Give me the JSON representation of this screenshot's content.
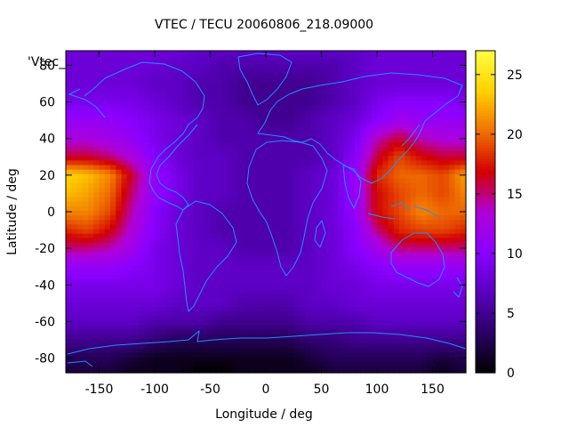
{
  "chart_data": {
    "type": "heatmap",
    "title": "VTEC / TECU 20060806_218.09000",
    "key_label": "'Vtec_",
    "xlabel": "Longitude / deg",
    "ylabel": "Latitude / deg",
    "xlim": [
      -180,
      180
    ],
    "ylim": [
      -88,
      88
    ],
    "xticks": [
      -150,
      -100,
      -50,
      0,
      50,
      100,
      150
    ],
    "yticks": [
      -80,
      -60,
      -40,
      -20,
      0,
      20,
      40,
      60,
      80
    ],
    "colorbar": {
      "range": [
        0,
        27
      ],
      "ticks": [
        0,
        5,
        10,
        15,
        20,
        25
      ],
      "palette": [
        "#000000",
        "#2a0064",
        "#5a00c0",
        "#8a00ff",
        "#b000d8",
        "#d20000",
        "#f07000",
        "#ffd000",
        "#ffff40"
      ]
    },
    "coastline_color": "#1e90ff",
    "grid": false,
    "x": [
      -180,
      -160,
      -140,
      -120,
      -100,
      -80,
      -60,
      -40,
      -20,
      0,
      20,
      40,
      60,
      80,
      100,
      120,
      140,
      160,
      180
    ],
    "y": [
      87.5,
      80,
      70,
      60,
      50,
      40,
      30,
      20,
      10,
      0,
      -10,
      -20,
      -30,
      -40,
      -50,
      -60,
      -70,
      -80,
      -87.5
    ],
    "z": [
      [
        8,
        8,
        8,
        8,
        8,
        8,
        7,
        7,
        7,
        7,
        7,
        7,
        7,
        7,
        8,
        8,
        8,
        8,
        8
      ],
      [
        8,
        8,
        8,
        8,
        8,
        7,
        7,
        6,
        6,
        6,
        6,
        6,
        6,
        7,
        8,
        8,
        8,
        8,
        8
      ],
      [
        8,
        8,
        8,
        8,
        7,
        7,
        6,
        6,
        5,
        5,
        5,
        5,
        6,
        7,
        8,
        8,
        8,
        8,
        8
      ],
      [
        9,
        9,
        9,
        9,
        8,
        7,
        6,
        6,
        5,
        5,
        5,
        5,
        6,
        7,
        9,
        10,
        10,
        10,
        9
      ],
      [
        11,
        11,
        11,
        10,
        9,
        8,
        7,
        6,
        6,
        5,
        5,
        6,
        7,
        8,
        10,
        12,
        11,
        11,
        11
      ],
      [
        13,
        13,
        12,
        11,
        9,
        8,
        7,
        6,
        6,
        6,
        6,
        6,
        7,
        9,
        14,
        16,
        14,
        13,
        13
      ],
      [
        16,
        16,
        15,
        13,
        10,
        8,
        7,
        7,
        6,
        6,
        6,
        6,
        7,
        10,
        16,
        19,
        17,
        16,
        16
      ],
      [
        24,
        23,
        21,
        16,
        11,
        9,
        7,
        7,
        6,
        6,
        6,
        7,
        8,
        11,
        18,
        20,
        20,
        19,
        22
      ],
      [
        23,
        22,
        20,
        15,
        11,
        9,
        7,
        7,
        6,
        6,
        6,
        7,
        8,
        11,
        17,
        19,
        20,
        19,
        21
      ],
      [
        21,
        21,
        19,
        14,
        10,
        8,
        7,
        6,
        6,
        6,
        6,
        7,
        8,
        11,
        17,
        19,
        21,
        20,
        20
      ],
      [
        18,
        19,
        17,
        13,
        10,
        8,
        7,
        6,
        6,
        6,
        6,
        7,
        8,
        10,
        15,
        18,
        19,
        19,
        18
      ],
      [
        15,
        15,
        14,
        12,
        9,
        8,
        7,
        7,
        6,
        6,
        6,
        7,
        8,
        10,
        12,
        15,
        15,
        15,
        15
      ],
      [
        11,
        11,
        11,
        10,
        9,
        8,
        7,
        7,
        7,
        7,
        7,
        7,
        8,
        9,
        10,
        11,
        11,
        11,
        11
      ],
      [
        9,
        9,
        9,
        9,
        9,
        8,
        7,
        7,
        7,
        7,
        7,
        7,
        8,
        8,
        9,
        9,
        9,
        9,
        9
      ],
      [
        8,
        8,
        8,
        8,
        8,
        7,
        7,
        7,
        6,
        6,
        6,
        7,
        7,
        8,
        8,
        8,
        8,
        8,
        8
      ],
      [
        7,
        7,
        7,
        7,
        6,
        6,
        6,
        5,
        5,
        5,
        5,
        6,
        6,
        6,
        7,
        7,
        7,
        7,
        7
      ],
      [
        5,
        5,
        5,
        5,
        4,
        3,
        3,
        3,
        3,
        3,
        3,
        4,
        4,
        5,
        5,
        5,
        5,
        5,
        5
      ],
      [
        3,
        3,
        3,
        2,
        1,
        1,
        1,
        1,
        1,
        1,
        1,
        2,
        3,
        3,
        3,
        3,
        3,
        2,
        3
      ],
      [
        2,
        2,
        2,
        1,
        1,
        1,
        0,
        0,
        1,
        1,
        1,
        1,
        2,
        2,
        2,
        2,
        2,
        1,
        2
      ]
    ]
  }
}
